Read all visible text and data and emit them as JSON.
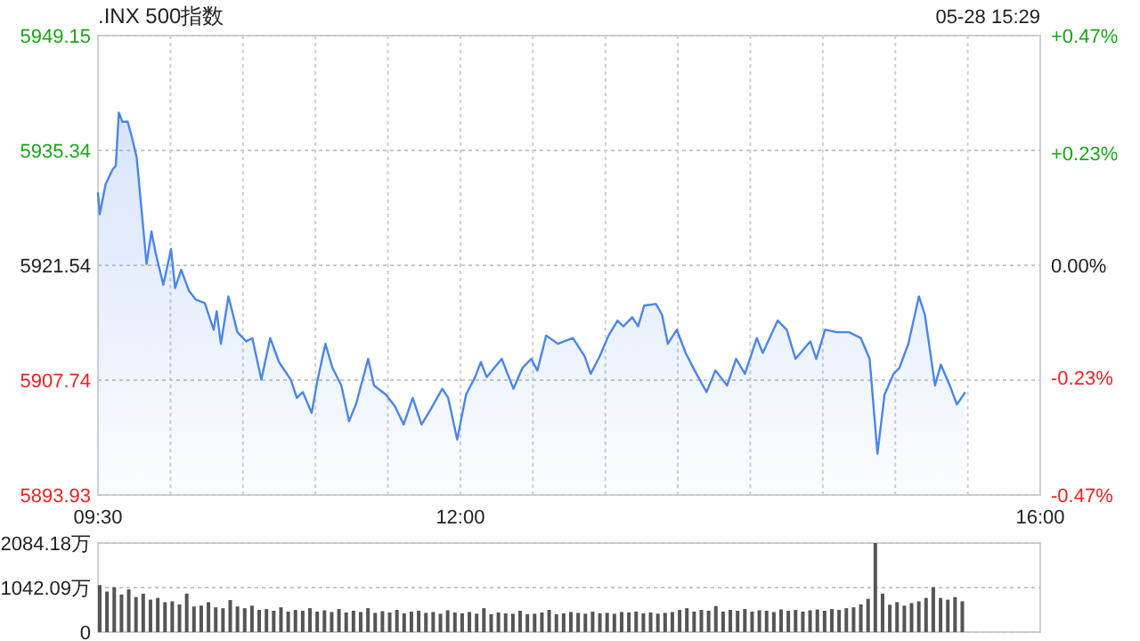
{
  "chart_data": [
    {
      "type": "area",
      "title": ".INX 500指数",
      "annotations": [
        "05-28 15:29"
      ],
      "color": "#4a86e8",
      "x": [
        9.5,
        9.512,
        9.553,
        9.602,
        9.623,
        9.644,
        9.668,
        9.705,
        9.733,
        9.767,
        9.807,
        9.835,
        9.869,
        9.897,
        9.951,
        10.004,
        10.032,
        10.074,
        10.127,
        10.176,
        10.237,
        10.298,
        10.319,
        10.348,
        10.4,
        10.462,
        10.523,
        10.565,
        10.627,
        10.688,
        10.749,
        10.83,
        10.872,
        10.913,
        10.974,
        11.015,
        11.069,
        11.118,
        11.179,
        11.232,
        11.281,
        11.364,
        11.404,
        11.486,
        11.548,
        11.609,
        11.671,
        11.732,
        11.794,
        11.875,
        11.916,
        11.978,
        12.039,
        12.101,
        12.141,
        12.182,
        12.285,
        12.366,
        12.428,
        12.489,
        12.531,
        12.592,
        12.673,
        12.776,
        12.857,
        12.899,
        12.961,
        13.022,
        13.084,
        13.124,
        13.186,
        13.226,
        13.268,
        13.349,
        13.391,
        13.431,
        13.493,
        13.554,
        13.616,
        13.698,
        13.759,
        13.84,
        13.902,
        13.963,
        14.045,
        14.086,
        14.189,
        14.251,
        14.312,
        14.414,
        14.455,
        14.516,
        14.599,
        14.681,
        14.762,
        14.823,
        14.877,
        14.926,
        14.988,
        15.028,
        15.09,
        15.163,
        15.204,
        15.274,
        15.314,
        15.376,
        15.425,
        15.483
      ],
      "values": [
        5930.3,
        5927.7,
        5931.3,
        5933.1,
        5933.5,
        5939.9,
        5938.8,
        5938.8,
        5937.0,
        5934.5,
        5927.0,
        5921.7,
        5925.6,
        5923.1,
        5919.2,
        5923.5,
        5918.8,
        5921.0,
        5918.5,
        5917.4,
        5917.0,
        5913.8,
        5916.0,
        5912.1,
        5917.8,
        5913.5,
        5912.4,
        5912.8,
        5907.8,
        5912.8,
        5909.9,
        5907.8,
        5905.6,
        5906.3,
        5903.8,
        5907.8,
        5912.1,
        5909.2,
        5907.1,
        5902.8,
        5904.9,
        5910.3,
        5907.1,
        5906.0,
        5904.6,
        5902.4,
        5905.6,
        5902.4,
        5904.2,
        5906.7,
        5905.6,
        5900.6,
        5906.0,
        5908.1,
        5909.9,
        5908.1,
        5910.3,
        5906.7,
        5909.2,
        5910.3,
        5908.9,
        5913.1,
        5912.1,
        5912.8,
        5910.6,
        5908.5,
        5910.6,
        5913.1,
        5914.9,
        5914.2,
        5915.3,
        5914.2,
        5916.7,
        5916.9,
        5915.6,
        5912.1,
        5913.8,
        5911.0,
        5908.9,
        5906.3,
        5908.9,
        5907.1,
        5910.3,
        5908.5,
        5912.8,
        5911.0,
        5914.9,
        5913.8,
        5910.3,
        5912.4,
        5910.3,
        5913.8,
        5913.5,
        5913.5,
        5912.8,
        5910.3,
        5898.9,
        5906.0,
        5908.5,
        5909.2,
        5912.1,
        5917.8,
        5915.6,
        5907.1,
        5909.6,
        5907.1,
        5904.8,
        5906.3
      ],
      "xlim": [
        9.5,
        16
      ],
      "xticks": [
        {
          "value": 9.5,
          "label": "09:30"
        },
        {
          "value": 10,
          "label": null
        },
        {
          "value": 10.5,
          "label": null
        },
        {
          "value": 11,
          "label": null
        },
        {
          "value": 11.5,
          "label": null
        },
        {
          "value": 12,
          "label": "12:00"
        },
        {
          "value": 12.5,
          "label": null
        },
        {
          "value": 13,
          "label": null
        },
        {
          "value": 13.5,
          "label": null
        },
        {
          "value": 14,
          "label": null
        },
        {
          "value": 14.5,
          "label": null
        },
        {
          "value": 15,
          "label": null
        },
        {
          "value": 15.5,
          "label": null
        },
        {
          "value": 16,
          "label": "16:00"
        }
      ],
      "ylim": [
        5893.93,
        5949.15
      ],
      "yticks": [
        5949.15,
        5935.34,
        5921.54,
        5907.74,
        5893.93
      ],
      "y2lim": [
        -0.47,
        0.47
      ],
      "y2ticks": [
        {
          "value": 0.47,
          "label": "+0.47%"
        },
        {
          "value": 0.23,
          "label": "+0.23%"
        },
        {
          "value": 0,
          "label": "0.00%"
        },
        {
          "value": -0.23,
          "label": "-0.23%"
        },
        {
          "value": -0.47,
          "label": "-0.47%"
        }
      ],
      "grid": true
    },
    {
      "type": "bar",
      "color": "#555555",
      "tick_labels": "y",
      "grid": "y",
      "x": [
        9.5,
        9.55,
        9.6,
        9.65,
        9.7,
        9.75,
        9.8,
        9.85,
        9.9,
        9.95,
        10,
        10.05,
        10.1,
        10.15,
        10.2,
        10.25,
        10.3,
        10.35,
        10.4,
        10.45,
        10.5,
        10.55,
        10.6,
        10.65,
        10.7,
        10.75,
        10.8,
        10.85,
        10.9,
        10.95,
        11,
        11.05,
        11.1,
        11.15,
        11.2,
        11.25,
        11.3,
        11.35,
        11.4,
        11.45,
        11.5,
        11.55,
        11.6,
        11.65,
        11.7,
        11.75,
        11.8,
        11.85,
        11.9,
        11.95,
        12,
        12.05,
        12.1,
        12.15,
        12.2,
        12.25,
        12.3,
        12.35,
        12.4,
        12.45,
        12.5,
        12.55,
        12.6,
        12.65,
        12.7,
        12.75,
        12.8,
        12.85,
        12.9,
        12.95,
        13,
        13.05,
        13.1,
        13.15,
        13.2,
        13.25,
        13.3,
        13.35,
        13.4,
        13.45,
        13.5,
        13.55,
        13.6,
        13.65,
        13.7,
        13.75,
        13.8,
        13.85,
        13.9,
        13.95,
        14,
        14.05,
        14.1,
        14.15,
        14.2,
        14.25,
        14.3,
        14.35,
        14.4,
        14.45,
        14.5,
        14.55,
        14.6,
        14.65,
        14.7,
        14.75,
        14.8,
        14.85,
        14.9,
        14.95,
        15,
        15.05,
        15.1,
        15.15,
        15.2,
        15.25,
        15.3,
        15.35,
        15.4,
        15.45
      ],
      "values": [
        1100,
        950,
        1050,
        880,
        1000,
        820,
        900,
        760,
        800,
        700,
        720,
        650,
        900,
        600,
        620,
        700,
        580,
        560,
        750,
        600,
        560,
        620,
        520,
        540,
        500,
        580,
        480,
        520,
        500,
        560,
        480,
        510,
        470,
        540,
        460,
        500,
        470,
        560,
        450,
        490,
        460,
        520,
        440,
        480,
        500,
        450,
        470,
        430,
        510,
        460,
        440,
        470,
        430,
        560,
        420,
        460,
        440,
        430,
        500,
        420,
        430,
        460,
        520,
        420,
        440,
        470,
        450,
        430,
        480,
        440,
        450,
        430,
        470,
        460,
        480,
        440,
        460,
        430,
        450,
        470,
        520,
        560,
        480,
        520,
        500,
        610,
        480,
        520,
        500,
        540,
        480,
        510,
        500,
        470,
        530,
        500,
        520,
        480,
        510,
        530,
        500,
        540,
        520,
        560,
        580,
        650,
        780,
        2084.18,
        900,
        640,
        700,
        620,
        680,
        720,
        800,
        1050,
        800,
        760,
        820,
        720
      ],
      "xlim": [
        9.5,
        16
      ],
      "ylim": [
        0,
        2084.18
      ],
      "yticks": [
        {
          "value": 2084.18,
          "label": "2084.18万"
        },
        {
          "value": 1042.09,
          "label": "1042.09万"
        },
        {
          "value": 0,
          "label": "0"
        }
      ]
    }
  ]
}
